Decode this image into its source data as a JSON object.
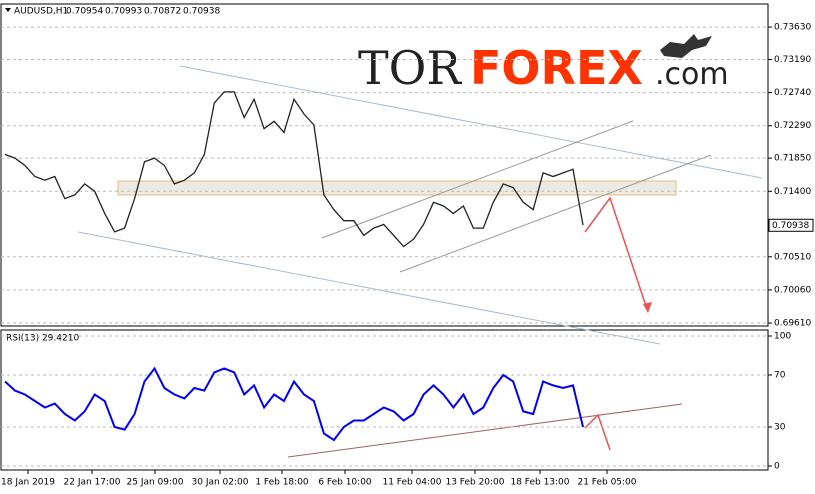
{
  "header": {
    "symbol": "AUDUSD,H1",
    "ohlc": [
      0.70954,
      0.70993,
      0.70872,
      0.70938
    ]
  },
  "logo": {
    "tor": "TOR",
    "forex": "FOREX",
    "com": ".com"
  },
  "x_axis_labels": [
    "18 Jan 2019",
    "22 Jan 17:00",
    "25 Jan 09:00",
    "30 Jan 02:00",
    "1 Feb 18:00",
    "6 Feb 10:00",
    "11 Feb 04:00",
    "13 Feb 20:00",
    "18 Feb 13:00",
    "21 Feb 05:00"
  ],
  "chart_data": [
    {
      "type": "line",
      "title": "AUDUSD,H1",
      "color": "#222222",
      "grid": true,
      "ylim": [
        0.6957,
        0.7393
      ],
      "yticks": [
        {
          "value": 0.7363,
          "label": "0.73630"
        },
        {
          "value": 0.7319,
          "label": "0.73190"
        },
        {
          "value": 0.7274,
          "label": "0.72740"
        },
        {
          "value": 0.7229,
          "label": "0.72290"
        },
        {
          "value": 0.7185,
          "label": "0.71850"
        },
        {
          "value": 0.714,
          "label": "0.71400"
        },
        {
          "value": 0.7051,
          "label": "0.70510"
        },
        {
          "value": 0.7006,
          "label": "0.70060"
        },
        {
          "value": 0.6961,
          "label": "0.69610"
        }
      ],
      "last_price": 0.70938,
      "values": [
        0.719,
        0.7185,
        0.7175,
        0.716,
        0.7155,
        0.716,
        0.713,
        0.7135,
        0.715,
        0.714,
        0.711,
        0.7085,
        0.709,
        0.713,
        0.718,
        0.7185,
        0.7175,
        0.715,
        0.7155,
        0.7165,
        0.719,
        0.726,
        0.7275,
        0.7275,
        0.724,
        0.7265,
        0.7225,
        0.7235,
        0.722,
        0.7265,
        0.7245,
        0.723,
        0.7135,
        0.7115,
        0.71,
        0.71,
        0.708,
        0.709,
        0.7095,
        0.708,
        0.7065,
        0.7075,
        0.7095,
        0.7125,
        0.712,
        0.711,
        0.712,
        0.709,
        0.709,
        0.7125,
        0.715,
        0.7145,
        0.7125,
        0.7115,
        0.7165,
        0.716,
        0.7165,
        0.717,
        0.7094
      ]
    },
    {
      "type": "line",
      "title": "RSI(13) 29.4210",
      "color": "#0000ff",
      "grid": true,
      "ylim": [
        0,
        100
      ],
      "yticks": [
        100,
        70,
        30,
        0
      ],
      "values": [
        65,
        58,
        55,
        50,
        45,
        48,
        40,
        35,
        42,
        55,
        50,
        30,
        28,
        40,
        65,
        75,
        60,
        55,
        52,
        60,
        58,
        72,
        75,
        72,
        55,
        62,
        45,
        55,
        50,
        65,
        55,
        50,
        25,
        20,
        30,
        35,
        35,
        40,
        45,
        42,
        35,
        40,
        55,
        62,
        55,
        45,
        55,
        40,
        45,
        60,
        70,
        65,
        42,
        40,
        65,
        62,
        60,
        62,
        30
      ]
    }
  ]
}
